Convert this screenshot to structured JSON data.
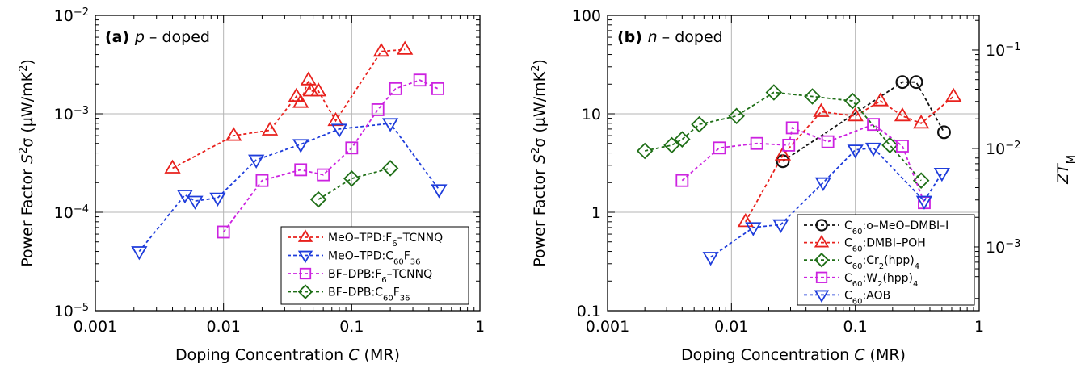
{
  "chart_data": [
    {
      "type": "line",
      "panel_label": "(a)",
      "panel_title": "p – doped",
      "xlabel": "Doping Concentration C (MR)",
      "ylabel": "Power Factor S²σ (µW/mK²)",
      "xscale": "log",
      "yscale": "log",
      "xlim": [
        0.001,
        1
      ],
      "ylim": [
        1e-05,
        0.01
      ],
      "grid": true,
      "legend_position": "bottom-right",
      "xticks": [
        {
          "value": 0.001,
          "label": "0.001"
        },
        {
          "value": 0.01,
          "label": "0.01"
        },
        {
          "value": 0.1,
          "label": "0.1"
        },
        {
          "value": 1,
          "label": "1"
        }
      ],
      "yticks": [
        {
          "value": 1e-05,
          "base": "10",
          "exp": "−5"
        },
        {
          "value": 0.0001,
          "base": "10",
          "exp": "−4"
        },
        {
          "value": 0.001,
          "base": "10",
          "exp": "−3"
        },
        {
          "value": 0.01,
          "base": "10",
          "exp": "−2"
        }
      ],
      "series": [
        {
          "name": "MeO–TPD:F₆–TCNNQ",
          "marker": "triangle-up",
          "color": "#e8211d",
          "x": [
            0.004,
            0.012,
            0.023,
            0.037,
            0.04,
            0.046,
            0.048,
            0.055,
            0.075,
            0.17,
            0.26
          ],
          "y": [
            0.00028,
            0.0006,
            0.00068,
            0.0015,
            0.0013,
            0.0022,
            0.0017,
            0.0017,
            0.00085,
            0.0043,
            0.0045
          ]
        },
        {
          "name": "MeO–TPD:C₆₀F₃₆",
          "marker": "triangle-down",
          "color": "#1f3ddb",
          "x": [
            0.0022,
            0.005,
            0.006,
            0.009,
            0.018,
            0.04,
            0.08,
            0.2,
            0.48
          ],
          "y": [
            4e-05,
            0.00015,
            0.00013,
            0.00014,
            0.00034,
            0.00049,
            0.0007,
            0.0008,
            0.00017
          ]
        },
        {
          "name": "BF–DPB:F₆–TCNNQ",
          "marker": "square",
          "color": "#cc22e0",
          "x": [
            0.01,
            0.02,
            0.04,
            0.06,
            0.1,
            0.16,
            0.22,
            0.34,
            0.47
          ],
          "y": [
            6.3e-05,
            0.00021,
            0.00027,
            0.00024,
            0.00045,
            0.0011,
            0.0018,
            0.0022,
            0.0018
          ]
        },
        {
          "name": "BF–DPB:C₆₀F₃₆",
          "marker": "diamond",
          "color": "#1e6e16",
          "x": [
            0.055,
            0.1,
            0.2
          ],
          "y": [
            0.000135,
            0.00022,
            0.00028
          ]
        }
      ]
    },
    {
      "type": "line",
      "panel_label": "(b)",
      "panel_title": "n – doped",
      "xlabel": "Doping Concentration C (MR)",
      "ylabel": "Power Factor S²σ (µW/mK²)",
      "y2label": "ZT_M",
      "xscale": "log",
      "yscale": "log",
      "xlim": [
        0.001,
        1
      ],
      "ylim": [
        0.1,
        100
      ],
      "y2lim": [
        0.000225,
        0.225
      ],
      "grid": true,
      "legend_position": "bottom-right",
      "xticks": [
        {
          "value": 0.001,
          "label": "0.001"
        },
        {
          "value": 0.01,
          "label": "0.01"
        },
        {
          "value": 0.1,
          "label": "0.1"
        },
        {
          "value": 1,
          "label": "1"
        }
      ],
      "yticks": [
        {
          "value": 0.1,
          "label": "0.1"
        },
        {
          "value": 1,
          "label": "1"
        },
        {
          "value": 10,
          "label": "10"
        },
        {
          "value": 100,
          "label": "100"
        }
      ],
      "y2ticks": [
        {
          "value": 0.001,
          "base": "10",
          "exp": "−3"
        },
        {
          "value": 0.01,
          "base": "10",
          "exp": "−2"
        },
        {
          "value": 0.1,
          "base": "10",
          "exp": "−1"
        }
      ],
      "series": [
        {
          "name": "C₆₀:o–MeO–DMBI–I",
          "marker": "circle",
          "color": "#111111",
          "x": [
            0.026,
            0.24,
            0.31,
            0.52
          ],
          "y": [
            3.3,
            21,
            21,
            6.5
          ]
        },
        {
          "name": "C₆₀:DMBI–POH",
          "marker": "triangle-up",
          "color": "#e8211d",
          "x": [
            0.013,
            0.026,
            0.053,
            0.1,
            0.16,
            0.24,
            0.34,
            0.62
          ],
          "y": [
            0.8,
            3.8,
            10.5,
            9.5,
            13.5,
            9.5,
            8.0,
            15
          ]
        },
        {
          "name": "C₆₀:Cr₂(hpp)₄",
          "marker": "diamond",
          "color": "#1e6e16",
          "x": [
            0.002,
            0.0033,
            0.004,
            0.0055,
            0.011,
            0.022,
            0.045,
            0.095,
            0.19,
            0.34
          ],
          "y": [
            4.2,
            4.8,
            5.5,
            7.8,
            9.5,
            16.5,
            15,
            13.5,
            4.8,
            2.1
          ]
        },
        {
          "name": "C₆₀:W₂(hpp)₄",
          "marker": "square",
          "color": "#cc22e0",
          "x": [
            0.004,
            0.008,
            0.016,
            0.029,
            0.031,
            0.06,
            0.14,
            0.24,
            0.36
          ],
          "y": [
            2.1,
            4.5,
            5.0,
            4.8,
            7.2,
            5.2,
            7.8,
            4.7,
            1.25
          ]
        },
        {
          "name": "C₆₀:AOB",
          "marker": "triangle-down",
          "color": "#1f3ddb",
          "x": [
            0.0068,
            0.015,
            0.025,
            0.055,
            0.1,
            0.14,
            0.36,
            0.5
          ],
          "y": [
            0.35,
            0.7,
            0.75,
            2.0,
            4.3,
            4.5,
            1.3,
            2.5
          ]
        }
      ]
    }
  ]
}
